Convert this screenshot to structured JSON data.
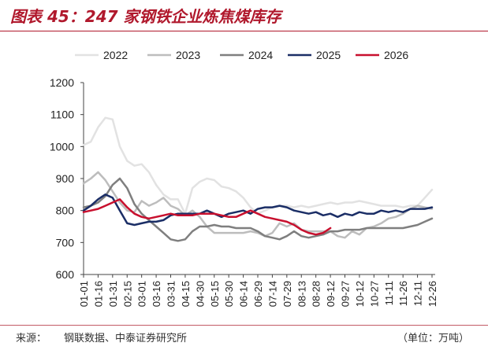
{
  "title": "图表 45：247 家钢铁企业炼焦煤库存",
  "source_label": "来源：",
  "source_text": "钢联数据、中泰证券研究所",
  "unit_text": "（单位：万吨）",
  "chart_data": {
    "type": "line",
    "title": "",
    "xlabel": "",
    "ylabel": "",
    "ylim": [
      600,
      1200
    ],
    "yticks": [
      600,
      700,
      800,
      900,
      1000,
      1100,
      1200
    ],
    "grid": false,
    "legend_position": "top",
    "x": [
      "01-01",
      "01-16",
      "01-31",
      "02-15",
      "03-01",
      "03-16",
      "03-31",
      "04-15",
      "04-30",
      "05-15",
      "05-30",
      "06-14",
      "06-29",
      "07-14",
      "07-29",
      "08-13",
      "08-28",
      "09-12",
      "09-27",
      "10-12",
      "10-27",
      "11-11",
      "11-26",
      "12-11",
      "12-26"
    ],
    "series": [
      {
        "name": "2022",
        "color": "#e2e2e2",
        "points": [
          [
            0,
            1005
          ],
          [
            0.5,
            1015
          ],
          [
            1,
            1060
          ],
          [
            1.5,
            1090
          ],
          [
            2,
            1085
          ],
          [
            2.5,
            1000
          ],
          [
            3,
            955
          ],
          [
            3.5,
            940
          ],
          [
            4,
            945
          ],
          [
            4.5,
            920
          ],
          [
            5,
            880
          ],
          [
            5.5,
            850
          ],
          [
            6,
            835
          ],
          [
            6.5,
            835
          ],
          [
            7,
            790
          ],
          [
            7.5,
            870
          ],
          [
            8,
            890
          ],
          [
            8.5,
            900
          ],
          [
            9,
            895
          ],
          [
            9.5,
            875
          ],
          [
            10,
            870
          ],
          [
            10.5,
            860
          ],
          [
            11,
            840
          ],
          [
            11.5,
            810
          ],
          [
            12,
            790
          ],
          [
            12.5,
            800
          ],
          [
            13,
            810
          ],
          [
            13.5,
            815
          ],
          [
            14,
            815
          ],
          [
            14.5,
            810
          ],
          [
            15,
            815
          ],
          [
            15.5,
            810
          ],
          [
            16,
            815
          ],
          [
            16.5,
            820
          ],
          [
            17,
            825
          ],
          [
            17.5,
            820
          ],
          [
            18,
            825
          ],
          [
            18.5,
            825
          ],
          [
            19,
            830
          ],
          [
            19.5,
            825
          ],
          [
            20,
            820
          ],
          [
            20.5,
            815
          ],
          [
            21,
            815
          ],
          [
            21.5,
            815
          ],
          [
            22,
            810
          ],
          [
            22.5,
            815
          ],
          [
            23,
            815
          ],
          [
            23.5,
            840
          ],
          [
            24,
            865
          ]
        ]
      },
      {
        "name": "2023",
        "color": "#bdbdbd",
        "points": [
          [
            0,
            885
          ],
          [
            0.5,
            900
          ],
          [
            1,
            920
          ],
          [
            1.5,
            895
          ],
          [
            2,
            860
          ],
          [
            2.5,
            825
          ],
          [
            3,
            800
          ],
          [
            3.5,
            795
          ],
          [
            4,
            830
          ],
          [
            4.5,
            815
          ],
          [
            5,
            825
          ],
          [
            5.5,
            840
          ],
          [
            6,
            815
          ],
          [
            6.5,
            805
          ],
          [
            7,
            785
          ],
          [
            7.5,
            800
          ],
          [
            8,
            780
          ],
          [
            8.5,
            750
          ],
          [
            9,
            730
          ],
          [
            9.5,
            730
          ],
          [
            10,
            730
          ],
          [
            10.5,
            730
          ],
          [
            11,
            730
          ],
          [
            11.5,
            735
          ],
          [
            12,
            730
          ],
          [
            12.5,
            720
          ],
          [
            13,
            730
          ],
          [
            13.5,
            760
          ],
          [
            14,
            750
          ],
          [
            14.5,
            760
          ],
          [
            15,
            740
          ],
          [
            15.5,
            735
          ],
          [
            16,
            735
          ],
          [
            16.5,
            735
          ],
          [
            17,
            735
          ],
          [
            17.5,
            720
          ],
          [
            18,
            715
          ],
          [
            18.5,
            735
          ],
          [
            19,
            725
          ],
          [
            19.5,
            745
          ],
          [
            20,
            750
          ],
          [
            20.5,
            760
          ],
          [
            21,
            775
          ],
          [
            21.5,
            780
          ],
          [
            22,
            790
          ],
          [
            22.5,
            805
          ],
          [
            23,
            815
          ],
          [
            23.5,
            810
          ],
          [
            24,
            805
          ]
        ]
      },
      {
        "name": "2024",
        "color": "#7f7f7f",
        "points": [
          [
            0,
            810
          ],
          [
            0.5,
            815
          ],
          [
            1,
            825
          ],
          [
            1.5,
            845
          ],
          [
            2,
            880
          ],
          [
            2.5,
            900
          ],
          [
            3,
            870
          ],
          [
            3.5,
            820
          ],
          [
            4,
            790
          ],
          [
            4.5,
            770
          ],
          [
            5,
            750
          ],
          [
            5.5,
            730
          ],
          [
            6,
            710
          ],
          [
            6.5,
            705
          ],
          [
            7,
            710
          ],
          [
            7.5,
            735
          ],
          [
            8,
            750
          ],
          [
            8.5,
            750
          ],
          [
            9,
            755
          ],
          [
            9.5,
            750
          ],
          [
            10,
            750
          ],
          [
            10.5,
            745
          ],
          [
            11,
            745
          ],
          [
            11.5,
            745
          ],
          [
            12,
            735
          ],
          [
            12.5,
            720
          ],
          [
            13,
            715
          ],
          [
            13.5,
            710
          ],
          [
            14,
            720
          ],
          [
            14.5,
            735
          ],
          [
            15,
            720
          ],
          [
            15.5,
            715
          ],
          [
            16,
            720
          ],
          [
            16.5,
            725
          ],
          [
            17,
            735
          ],
          [
            17.5,
            735
          ],
          [
            18,
            740
          ],
          [
            18.5,
            740
          ],
          [
            19,
            740
          ],
          [
            19.5,
            745
          ],
          [
            20,
            745
          ],
          [
            20.5,
            745
          ],
          [
            21,
            745
          ],
          [
            21.5,
            745
          ],
          [
            22,
            745
          ],
          [
            22.5,
            750
          ],
          [
            23,
            755
          ],
          [
            23.5,
            765
          ],
          [
            24,
            775
          ]
        ]
      },
      {
        "name": "2025",
        "color": "#1b2e66",
        "points": [
          [
            0,
            800
          ],
          [
            0.5,
            815
          ],
          [
            1,
            835
          ],
          [
            1.5,
            850
          ],
          [
            2,
            840
          ],
          [
            2.5,
            800
          ],
          [
            3,
            760
          ],
          [
            3.5,
            755
          ],
          [
            4,
            760
          ],
          [
            4.5,
            765
          ],
          [
            5,
            765
          ],
          [
            5.5,
            770
          ],
          [
            6,
            785
          ],
          [
            6.5,
            790
          ],
          [
            7,
            790
          ],
          [
            7.5,
            790
          ],
          [
            8,
            790
          ],
          [
            8.5,
            800
          ],
          [
            9,
            790
          ],
          [
            9.5,
            780
          ],
          [
            10,
            790
          ],
          [
            10.5,
            795
          ],
          [
            11,
            800
          ],
          [
            11.5,
            790
          ],
          [
            12,
            805
          ],
          [
            12.5,
            810
          ],
          [
            13,
            810
          ],
          [
            13.5,
            815
          ],
          [
            14,
            810
          ],
          [
            14.5,
            800
          ],
          [
            15,
            795
          ],
          [
            15.5,
            790
          ],
          [
            16,
            795
          ],
          [
            16.5,
            785
          ],
          [
            17,
            790
          ],
          [
            17.5,
            780
          ],
          [
            18,
            790
          ],
          [
            18.5,
            785
          ],
          [
            19,
            795
          ],
          [
            19.5,
            790
          ],
          [
            20,
            790
          ],
          [
            20.5,
            800
          ],
          [
            21,
            795
          ],
          [
            21.5,
            800
          ],
          [
            22,
            795
          ],
          [
            22.5,
            805
          ],
          [
            23,
            805
          ],
          [
            23.5,
            805
          ],
          [
            24,
            810
          ]
        ]
      },
      {
        "name": "2026",
        "color": "#c8102e",
        "points": [
          [
            0,
            795
          ],
          [
            0.5,
            800
          ],
          [
            1,
            805
          ],
          [
            1.5,
            815
          ],
          [
            2,
            825
          ],
          [
            2.5,
            835
          ],
          [
            3,
            810
          ],
          [
            3.5,
            790
          ],
          [
            4,
            780
          ],
          [
            4.5,
            775
          ],
          [
            5,
            780
          ],
          [
            5.5,
            785
          ],
          [
            6,
            790
          ],
          [
            6.5,
            785
          ],
          [
            7,
            785
          ],
          [
            7.5,
            785
          ],
          [
            8,
            790
          ],
          [
            8.5,
            790
          ],
          [
            9,
            790
          ],
          [
            9.5,
            785
          ],
          [
            10,
            780
          ],
          [
            10.5,
            780
          ],
          [
            11,
            790
          ],
          [
            11.5,
            800
          ],
          [
            12,
            790
          ],
          [
            12.5,
            780
          ],
          [
            13,
            775
          ],
          [
            13.5,
            770
          ],
          [
            14,
            765
          ],
          [
            14.5,
            755
          ],
          [
            15,
            740
          ],
          [
            15.5,
            730
          ],
          [
            16,
            725
          ],
          [
            16.5,
            730
          ],
          [
            17,
            745
          ]
        ]
      }
    ]
  }
}
